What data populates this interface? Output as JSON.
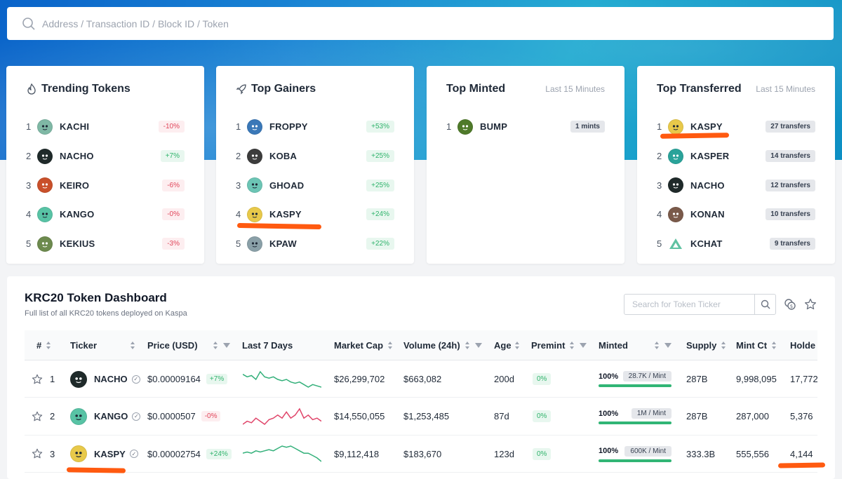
{
  "search": {
    "placeholder": "Address / Transaction ID / Block ID / Token"
  },
  "trending": {
    "title": "Trending Tokens",
    "items": [
      {
        "rank": "1",
        "name": "KACHI",
        "change": "-10%",
        "dir": "neg",
        "color": "#7fb8a5"
      },
      {
        "rank": "2",
        "name": "NACHO",
        "change": "+7%",
        "dir": "pos",
        "color": "#1f2a2a"
      },
      {
        "rank": "3",
        "name": "KEIRO",
        "change": "-6%",
        "dir": "neg",
        "color": "#c9502a"
      },
      {
        "rank": "4",
        "name": "KANGO",
        "change": "-0%",
        "dir": "neg",
        "color": "#58c3a5"
      },
      {
        "rank": "5",
        "name": "KEKIUS",
        "change": "-3%",
        "dir": "neg",
        "color": "#6d8a4e"
      }
    ]
  },
  "gainers": {
    "title": "Top Gainers",
    "items": [
      {
        "rank": "1",
        "name": "FROPPY",
        "change": "+53%",
        "dir": "pos",
        "color": "#3a78b8"
      },
      {
        "rank": "2",
        "name": "KOBA",
        "change": "+25%",
        "dir": "pos",
        "color": "#3c3c3c"
      },
      {
        "rank": "3",
        "name": "GHOAD",
        "change": "+25%",
        "dir": "pos",
        "color": "#6cc5b5"
      },
      {
        "rank": "4",
        "name": "KASPY",
        "change": "+24%",
        "dir": "pos",
        "color": "#e8c94a"
      },
      {
        "rank": "5",
        "name": "KPAW",
        "change": "+22%",
        "dir": "pos",
        "color": "#8aa0a8"
      }
    ]
  },
  "minted": {
    "title": "Top Minted",
    "subtitle": "Last 15 Minutes",
    "items": [
      {
        "rank": "1",
        "name": "BUMP",
        "badge": "1 mints",
        "color": "#4f7a2a"
      }
    ]
  },
  "transferred": {
    "title": "Top Transferred",
    "subtitle": "Last 15 Minutes",
    "items": [
      {
        "rank": "1",
        "name": "KASPY",
        "badge": "27 transfers",
        "color": "#e8c94a"
      },
      {
        "rank": "2",
        "name": "KASPER",
        "badge": "14 transfers",
        "color": "#2aa39a"
      },
      {
        "rank": "3",
        "name": "NACHO",
        "badge": "12 transfers",
        "color": "#1f2a2a"
      },
      {
        "rank": "4",
        "name": "KONAN",
        "badge": "10 transfers",
        "color": "#7a5a4a"
      },
      {
        "rank": "5",
        "name": "KCHAT",
        "badge": "9 transfers",
        "color": "#ffffff"
      }
    ]
  },
  "dashboard": {
    "title": "KRC20 Token Dashboard",
    "subtitle": "Full list of all KRC20 tokens deployed on Kaspa",
    "search_placeholder": "Search for Token Ticker",
    "columns": {
      "num": "#",
      "ticker": "Ticker",
      "price": "Price (USD)",
      "last7": "Last 7 Days",
      "mcap": "Market Cap",
      "volume": "Volume (24h)",
      "age": "Age",
      "premint": "Premint",
      "minted": "Minted",
      "supply": "Supply",
      "mintct": "Mint Ct",
      "holders": "Holde"
    },
    "rows": [
      {
        "rank": "1",
        "ticker": "NACHO",
        "price": "$0.00009164",
        "change": "+7%",
        "dir": "pos",
        "mcap": "$26,299,702",
        "volume": "$663,082",
        "age": "200d",
        "premint": "0%",
        "minted_pct": "100%",
        "mint_per": "28.7K / Mint",
        "supply": "287B",
        "mintct": "9,998,095",
        "holders": "17,772",
        "color": "#1f2a2a",
        "spark": [
          7,
          6,
          6.5,
          5,
          8,
          6,
          5.5,
          6,
          5,
          4.5,
          5,
          4,
          3.5,
          4,
          3,
          2,
          3,
          2.5,
          2
        ]
      },
      {
        "rank": "2",
        "ticker": "KANGO",
        "price": "$0.0000507",
        "change": "-0%",
        "dir": "neg",
        "mcap": "$14,550,055",
        "volume": "$1,253,485",
        "age": "87d",
        "premint": "0%",
        "minted_pct": "100%",
        "mint_per": "1M / Mint",
        "supply": "287B",
        "mintct": "287,000",
        "holders": "5,376",
        "color": "#58c3a5",
        "spark": [
          3,
          4,
          3.5,
          5,
          4,
          3,
          4.5,
          5,
          6,
          5,
          7,
          5,
          6,
          8,
          5,
          6,
          4.5,
          5,
          4
        ]
      },
      {
        "rank": "3",
        "ticker": "KASPY",
        "price": "$0.00002754",
        "change": "+24%",
        "dir": "pos",
        "mcap": "$9,112,418",
        "volume": "$183,670",
        "age": "123d",
        "premint": "0%",
        "minted_pct": "100%",
        "mint_per": "600K / Mint",
        "supply": "333.3B",
        "mintct": "555,556",
        "holders": "4,144",
        "color": "#e8c94a",
        "spark": [
          5,
          5.5,
          5,
          6,
          5.5,
          6,
          6.5,
          6,
          7,
          8,
          7.5,
          8,
          7,
          6,
          5,
          5,
          4,
          3,
          1.5
        ]
      }
    ]
  },
  "annotation_color": "#ff5a10"
}
